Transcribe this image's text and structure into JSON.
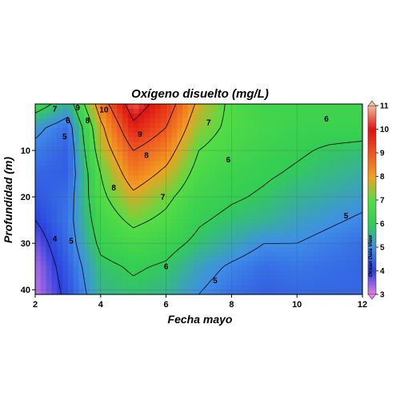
{
  "chart_data": {
    "type": "heatmap",
    "title": "Oxígeno disuelto (mg/L)",
    "xlabel": "Fecha mayo",
    "ylabel": "Profundidad (m)",
    "xlim": [
      2,
      12
    ],
    "ylim": [
      41,
      0
    ],
    "xticks": [
      2,
      4,
      6,
      8,
      10,
      12
    ],
    "yticks": [
      10,
      20,
      30,
      40
    ],
    "grid": true,
    "colorbar": {
      "min": 3,
      "max": 11,
      "ticks": [
        3,
        4,
        5,
        6,
        7,
        8,
        9,
        10,
        11
      ],
      "placement": "right",
      "colors": [
        "#e77fe6",
        "#2a3fe0",
        "#3f8ee8",
        "#33cc55",
        "#55dd44",
        "#f2a020",
        "#ee5522",
        "#dd1111",
        "#f5b89a"
      ]
    },
    "watermark": "Ocean Data View",
    "contour_levels": [
      4,
      5,
      6,
      7,
      8,
      9,
      10
    ],
    "contour_labels": [
      {
        "text": "7",
        "x": 2.6,
        "y": 1
      },
      {
        "text": "9",
        "x": 3.3,
        "y": 0.8
      },
      {
        "text": "10",
        "x": 4.1,
        "y": 1.2
      },
      {
        "text": "6",
        "x": 3.0,
        "y": 3.5
      },
      {
        "text": "8",
        "x": 3.6,
        "y": 3.5
      },
      {
        "text": "5",
        "x": 2.9,
        "y": 7
      },
      {
        "text": "9",
        "x": 5.2,
        "y": 6.5
      },
      {
        "text": "8",
        "x": 5.4,
        "y": 11
      },
      {
        "text": "8",
        "x": 4.4,
        "y": 18
      },
      {
        "text": "7",
        "x": 5.9,
        "y": 20
      },
      {
        "text": "7",
        "x": 7.3,
        "y": 4
      },
      {
        "text": "6",
        "x": 7.9,
        "y": 12
      },
      {
        "text": "6",
        "x": 10.9,
        "y": 3.2
      },
      {
        "text": "4",
        "x": 2.6,
        "y": 29
      },
      {
        "text": "5",
        "x": 3.1,
        "y": 29.5
      },
      {
        "text": "6",
        "x": 6.0,
        "y": 35
      },
      {
        "text": "5",
        "x": 7.5,
        "y": 38
      },
      {
        "text": "5",
        "x": 11.5,
        "y": 24
      }
    ],
    "values": {
      "x": [
        2,
        3,
        4,
        5,
        6,
        7,
        8,
        9,
        10,
        11,
        12
      ],
      "y": [
        0,
        5,
        10,
        15,
        20,
        25,
        30,
        35,
        41
      ],
      "z": [
        [
          6.5,
          5.5,
          8.5,
          10.5,
          9.5,
          7.8,
          6.8,
          6.4,
          6.4,
          6.4,
          6.4
        ],
        [
          5.2,
          4.6,
          7.8,
          9.8,
          9.0,
          7.4,
          6.8,
          6.5,
          6.3,
          6.3,
          6.3
        ],
        [
          4.8,
          4.4,
          7.5,
          9.0,
          8.4,
          7.0,
          6.6,
          6.3,
          6.1,
          5.9,
          5.8
        ],
        [
          4.5,
          4.4,
          7.0,
          8.5,
          7.8,
          6.7,
          6.3,
          6.1,
          5.9,
          5.7,
          5.5
        ],
        [
          4.3,
          4.6,
          6.8,
          7.8,
          7.2,
          6.4,
          6.1,
          5.9,
          5.6,
          5.4,
          5.2
        ],
        [
          4.0,
          4.7,
          6.5,
          7.2,
          6.8,
          6.1,
          5.8,
          5.6,
          5.3,
          5.1,
          4.9
        ],
        [
          3.6,
          4.6,
          6.2,
          6.6,
          6.3,
          5.8,
          5.4,
          5.0,
          5.0,
          4.8,
          4.6
        ],
        [
          3.3,
          4.4,
          5.8,
          6.1,
          5.9,
          5.3,
          4.9,
          4.6,
          4.7,
          4.6,
          4.5
        ],
        [
          3.2,
          4.2,
          5.6,
          5.8,
          5.6,
          5.0,
          4.6,
          4.4,
          4.5,
          4.5,
          4.5
        ]
      ]
    }
  }
}
